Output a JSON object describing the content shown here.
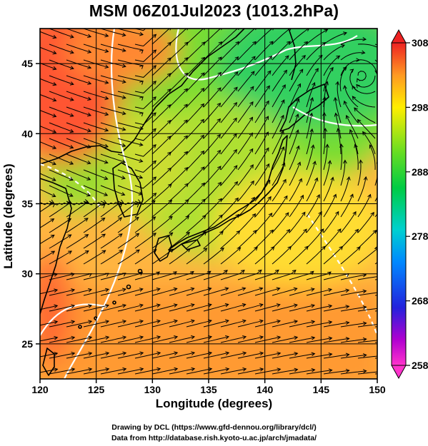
{
  "title": "MSM 06Z01Jul2023 (1013.2hPa)",
  "xlabel": "Longitude (degrees)",
  "ylabel": "Latitude  (degrees)",
  "credits": {
    "line1": "Drawing by DCL (https://www.gfd-dennou.org/library/dcl/)",
    "line2": "Data from http://database.rish.kyoto-u.ac.jp/arch/jmadata/"
  },
  "map": {
    "lon_range": [
      120,
      150
    ],
    "lat_range": [
      22.5,
      47.5
    ],
    "lon_ticks": [
      120,
      125,
      130,
      135,
      140,
      145,
      150
    ],
    "lat_ticks": [
      25,
      30,
      35,
      40,
      45
    ]
  },
  "colorbar": {
    "range": [
      258,
      308
    ],
    "tick_values": [
      258,
      268,
      278,
      288,
      298,
      308
    ],
    "tick_labels": [
      "258",
      "268",
      "278",
      "288",
      "298",
      "308"
    ]
  },
  "colors": {
    "land_outline": "#000000",
    "contour": "#ffffff",
    "streamline": "#000000"
  }
}
